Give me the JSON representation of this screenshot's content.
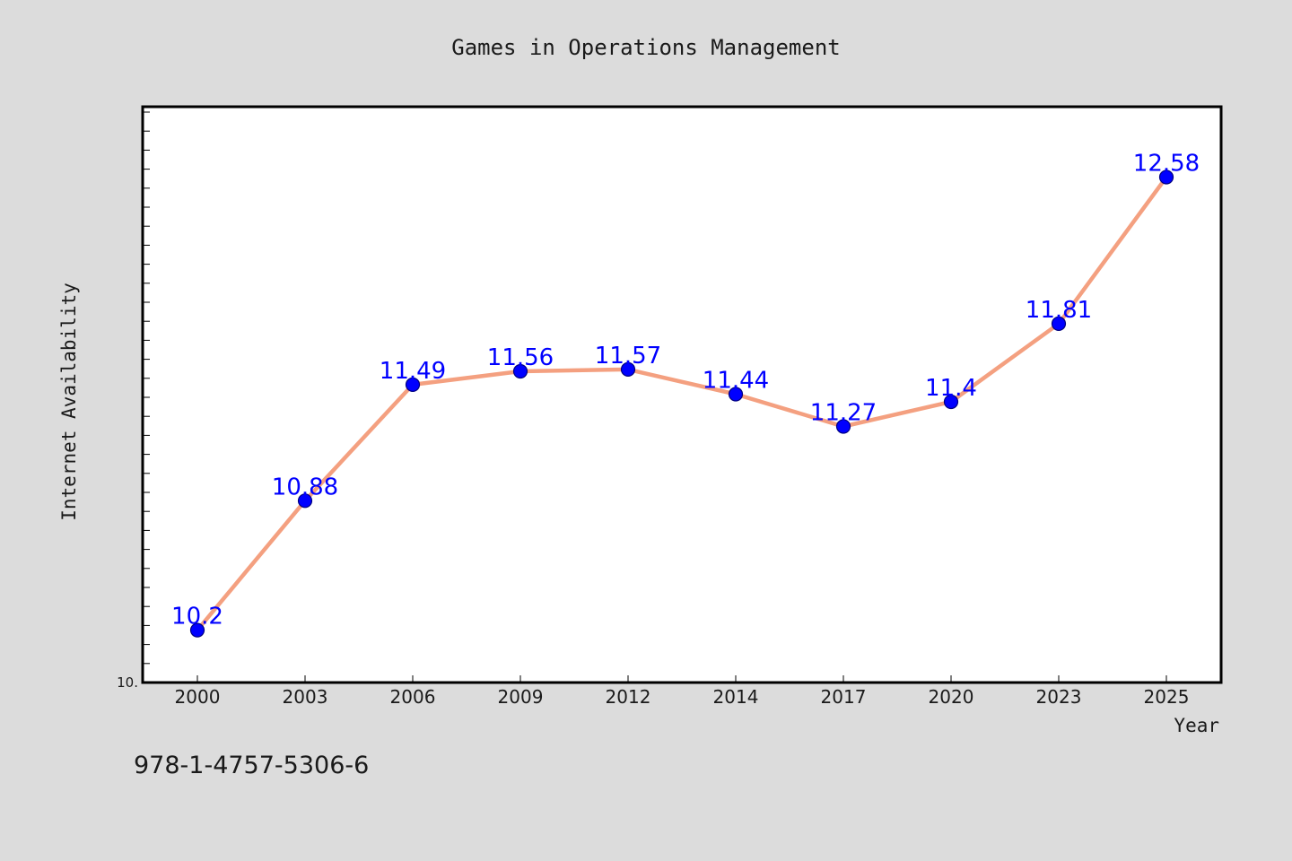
{
  "colors": {
    "figure_background": "#dcdcdc",
    "plot_background": "#ffffff",
    "axes_frame": "#000000",
    "line": "#f4a080",
    "marker": "#0000ff",
    "marker_edge": "#000080",
    "data_label": "#0000ff",
    "text": "#1a1a1a"
  },
  "footer_text": "978-1-4757-5306-6",
  "chart_data": {
    "type": "line",
    "title": "Games in Operations Management",
    "xlabel": "Year",
    "ylabel": "Internet Availability",
    "categories": [
      "2000",
      "2003",
      "2006",
      "2009",
      "2012",
      "2014",
      "2017",
      "2020",
      "2023",
      "2025"
    ],
    "series": [
      {
        "values": [
          10.2,
          10.88,
          11.49,
          11.56,
          11.57,
          11.44,
          11.27,
          11.4,
          11.81,
          12.58
        ],
        "data_labels": [
          "10.2",
          "10.88",
          "11.49",
          "11.56",
          "11.57",
          "11.44",
          "11.27",
          "11.4",
          "11.81",
          "12.58"
        ]
      }
    ],
    "y_tick_label": "10.",
    "ylim": [
      9.925,
      12.95
    ],
    "grid": false,
    "legend": "none"
  }
}
